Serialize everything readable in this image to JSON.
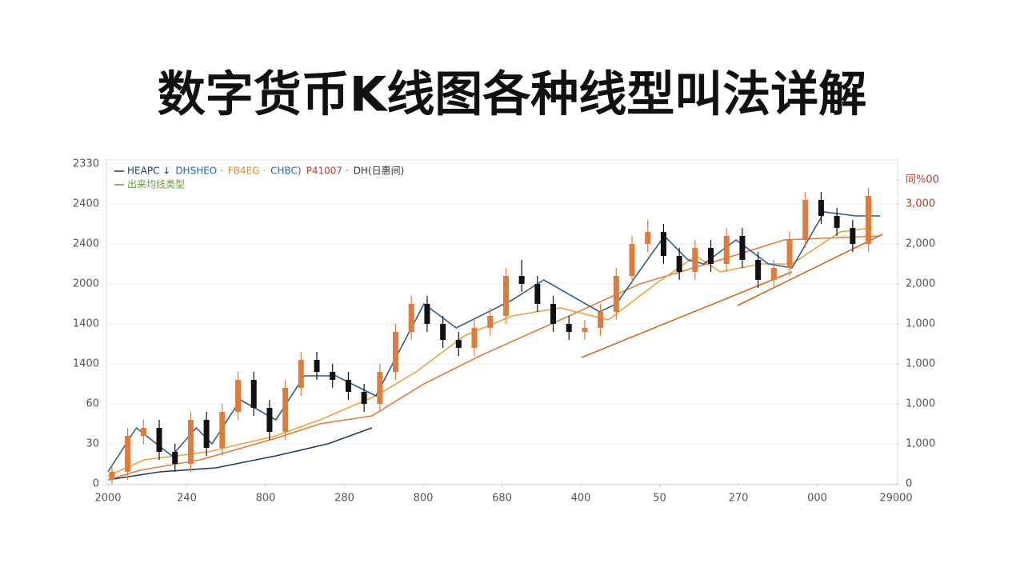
{
  "chart_data": {
    "type": "candlestick",
    "title": "数字货币K线图各种线型叫法详解",
    "xlim": [
      0,
      10
    ],
    "xticks": [
      {
        "value": 0,
        "label": "2000"
      },
      {
        "value": 1,
        "label": "240"
      },
      {
        "value": 2,
        "label": "800"
      },
      {
        "value": 3,
        "label": "280"
      },
      {
        "value": 4,
        "label": "800"
      },
      {
        "value": 5,
        "label": "680"
      },
      {
        "value": 6,
        "label": "400"
      },
      {
        "value": 7,
        "label": "50"
      },
      {
        "value": 8,
        "label": "270"
      },
      {
        "value": 9,
        "label": "000"
      },
      {
        "value": 10,
        "label": "29000"
      }
    ],
    "ylim": [
      0,
      8
    ],
    "yticks": [
      0,
      {
        "value": 1,
        "label": "30"
      },
      {
        "value": 2,
        "label": "60"
      },
      {
        "value": 3,
        "label": "1400"
      },
      {
        "value": 4,
        "label": "1400"
      },
      {
        "value": 5,
        "label": "2000"
      },
      {
        "value": 6,
        "label": "2400"
      },
      {
        "value": 7,
        "label": "2400"
      },
      {
        "value": 8,
        "label": "2330"
      }
    ],
    "y2lim": [
      0,
      8
    ],
    "y2ticks": [
      0,
      {
        "value": 1,
        "label": "1,000",
        "color": "#555555"
      },
      {
        "value": 2,
        "label": "1,000",
        "color": "#555555"
      },
      {
        "value": 3,
        "label": "1,000",
        "color": "#555555"
      },
      {
        "value": 4,
        "label": "1,000",
        "color": "#555555"
      },
      {
        "value": 5,
        "label": "2,000",
        "color": "#555555"
      },
      {
        "value": 6,
        "label": "2,000",
        "color": "#555555"
      },
      {
        "value": 7,
        "label": "3,000",
        "color": "#c0392b"
      },
      {
        "value": 7.6,
        "label": "同%00",
        "color": "#c0392b"
      }
    ],
    "grid": true,
    "legend": [
      [
        {
          "label": "HEAPC ↓",
          "color": "#1f3a5f"
        },
        {
          "label": "DHSHEO ·",
          "color": "#2a62b0"
        },
        {
          "label": "FB4EG ·",
          "color": "#e08a2e"
        },
        {
          "label": "CHBC)",
          "color": "#2a62b0"
        },
        {
          "label": "P41007 ·",
          "color": "#c0392b"
        },
        {
          "label": "DH(日惠间)",
          "color": "#333333"
        }
      ],
      [
        {
          "label": "出来均线类型",
          "color": "#6a9a3a"
        }
      ]
    ],
    "up_color": "#e07b39",
    "down_color": "#111111",
    "candles": {
      "x": [
        0.05,
        0.25,
        0.45,
        0.65,
        0.85,
        1.05,
        1.25,
        1.45,
        1.65,
        1.85,
        2.05,
        2.25,
        2.45,
        2.65,
        2.85,
        3.05,
        3.25,
        3.45,
        3.65,
        3.85,
        4.05,
        4.25,
        4.45,
        4.65,
        4.85,
        5.05,
        5.25,
        5.45,
        5.65,
        5.85,
        6.05,
        6.25,
        6.45,
        6.65,
        6.85,
        7.05,
        7.25,
        7.45,
        7.65,
        7.85,
        8.05,
        8.25,
        8.45,
        8.65,
        8.85,
        9.05,
        9.25,
        9.45,
        9.65
      ],
      "open": [
        0.1,
        0.3,
        1.2,
        1.4,
        0.8,
        0.5,
        1.6,
        0.9,
        1.8,
        2.6,
        1.9,
        1.3,
        2.4,
        3.1,
        2.8,
        2.6,
        2.3,
        2.0,
        2.8,
        3.8,
        4.5,
        4.0,
        3.6,
        3.4,
        3.9,
        4.2,
        5.2,
        5.0,
        4.5,
        4.0,
        3.8,
        3.9,
        4.3,
        5.2,
        6.0,
        6.3,
        5.7,
        5.3,
        5.9,
        5.5,
        6.2,
        5.6,
        5.1,
        5.4,
        6.1,
        7.1,
        6.7,
        6.4,
        6.0
      ],
      "close": [
        0.3,
        1.2,
        1.4,
        0.8,
        0.5,
        1.6,
        0.9,
        1.8,
        2.6,
        1.9,
        1.3,
        2.4,
        3.1,
        2.8,
        2.6,
        2.3,
        2.0,
        2.8,
        3.8,
        4.5,
        4.0,
        3.6,
        3.4,
        3.9,
        4.2,
        5.2,
        5.0,
        4.5,
        4.0,
        3.8,
        3.9,
        4.3,
        5.2,
        6.0,
        6.3,
        5.7,
        5.3,
        5.9,
        5.5,
        6.2,
        5.6,
        5.1,
        5.4,
        6.1,
        7.1,
        6.7,
        6.4,
        6.0,
        7.2
      ],
      "high": [
        0.5,
        1.4,
        1.6,
        1.6,
        1.0,
        1.8,
        1.8,
        2.0,
        2.8,
        2.8,
        2.1,
        2.6,
        3.3,
        3.3,
        3.0,
        2.8,
        2.5,
        3.0,
        4.0,
        4.7,
        4.7,
        4.2,
        3.8,
        4.1,
        4.4,
        5.4,
        5.6,
        5.2,
        4.7,
        4.2,
        4.1,
        4.5,
        5.4,
        6.2,
        6.6,
        6.5,
        5.9,
        6.1,
        6.1,
        6.4,
        6.4,
        5.8,
        5.6,
        6.3,
        7.3,
        7.3,
        6.9,
        6.6,
        7.4
      ],
      "low": [
        0,
        0.1,
        1.0,
        0.6,
        0.3,
        0.3,
        0.7,
        0.7,
        1.6,
        1.7,
        1.1,
        1.1,
        2.2,
        2.6,
        2.4,
        2.1,
        1.8,
        1.8,
        2.6,
        3.6,
        3.8,
        3.4,
        3.2,
        3.2,
        3.7,
        4.0,
        4.8,
        4.3,
        3.8,
        3.6,
        3.6,
        3.7,
        4.1,
        5.0,
        5.8,
        5.5,
        5.1,
        5.1,
        5.3,
        5.3,
        5.4,
        4.9,
        4.9,
        5.2,
        5.9,
        6.5,
        6.2,
        5.8,
        5.8
      ]
    },
    "series": [
      {
        "color": "#1f3a5f",
        "x": [
          0,
          0.66,
          1.37,
          2.13,
          2.79,
          3.35
        ],
        "values": [
          0.1,
          0.3,
          0.4,
          0.7,
          1.0,
          1.4
        ]
      },
      {
        "color": "#e07b39",
        "x": [
          0,
          0.41,
          1.17,
          2.13,
          2.69,
          3.35,
          4.01,
          4.72,
          5.74,
          6.75,
          7.77,
          8.58,
          9.8
        ],
        "values": [
          0.1,
          0.34,
          0.6,
          1.14,
          1.5,
          1.7,
          2.5,
          3.2,
          4.1,
          5.0,
          5.6,
          6.1,
          6.2
        ]
      },
      {
        "color": "#e8a33d",
        "x": [
          0,
          0.46,
          1.27,
          2.13,
          2.69,
          3.4,
          3.91,
          4.52,
          5.13,
          5.74,
          6.35,
          6.95,
          7.46,
          7.77,
          8.27,
          8.68,
          9.29,
          9.7
        ],
        "values": [
          0.2,
          0.6,
          0.8,
          1.2,
          1.6,
          2.2,
          2.8,
          3.7,
          4.2,
          4.4,
          4.1,
          5.0,
          5.7,
          5.3,
          5.5,
          5.5,
          6.3,
          6.4
        ]
      },
      {
        "color": "#2f5d8a",
        "x": [
          0,
          0.36,
          0.81,
          1.12,
          1.32,
          1.68,
          2.13,
          2.49,
          2.89,
          3.4,
          4.01,
          4.42,
          5.13,
          5.53,
          6.24,
          6.45,
          7.06,
          7.36,
          7.56,
          7.97,
          8.38,
          8.68,
          9.09,
          9.49,
          9.8
        ],
        "values": [
          0.3,
          1.4,
          0.7,
          1.4,
          1.0,
          2.1,
          1.6,
          2.7,
          2.7,
          2.2,
          4.5,
          3.9,
          4.6,
          5.1,
          4.3,
          4.5,
          6.2,
          5.6,
          5.5,
          6.1,
          5.5,
          5.4,
          6.8,
          6.7,
          6.7
        ]
      },
      {
        "color": "#d2691e",
        "x": [
          6.01,
          8.68
        ],
        "values": [
          3.16,
          5.3
        ]
      },
      {
        "color": "#d2691e",
        "x": [
          7.99,
          9.83
        ],
        "values": [
          4.46,
          6.24
        ]
      }
    ]
  }
}
